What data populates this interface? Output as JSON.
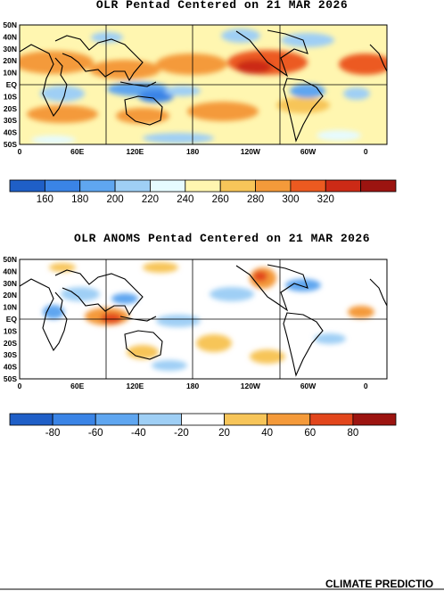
{
  "panel1": {
    "title": "OLR Pentad Centered on 21 MAR 2026",
    "lat_labels": [
      "50N",
      "40N",
      "30N",
      "20N",
      "10N",
      "EQ",
      "10S",
      "20S",
      "30S",
      "40S",
      "50S"
    ],
    "lon_labels": [
      "0",
      "60E",
      "120E",
      "180",
      "120W",
      "60W",
      "0"
    ],
    "colorbar": {
      "colors": [
        "#1f5fc7",
        "#3a84e6",
        "#5fa6f0",
        "#9fcff5",
        "#e6fbff",
        "#fff6b0",
        "#f7c559",
        "#f49a3a",
        "#ec5a20",
        "#cc2a16",
        "#9c1410"
      ],
      "labels": [
        "160",
        "180",
        "200",
        "220",
        "240",
        "260",
        "280",
        "300",
        "320"
      ]
    }
  },
  "panel2": {
    "title": "OLR ANOMS Pentad Centered on 21 MAR 2026",
    "lat_labels": [
      "50N",
      "40N",
      "30N",
      "20N",
      "10N",
      "EQ",
      "10S",
      "20S",
      "30S",
      "40S",
      "50S"
    ],
    "lon_labels": [
      "0",
      "60E",
      "120E",
      "180",
      "120W",
      "60W",
      "0"
    ],
    "colorbar": {
      "colors": [
        "#1f5fc7",
        "#3a84e6",
        "#5fa6f0",
        "#9fcff5",
        "#ffffff",
        "#f7c559",
        "#f49a3a",
        "#e2461c",
        "#9c1410"
      ],
      "labels": [
        "-80",
        "-60",
        "-40",
        "-20",
        "20",
        "40",
        "60",
        "80"
      ]
    }
  },
  "footer": "CLIMATE PREDICTIO"
}
